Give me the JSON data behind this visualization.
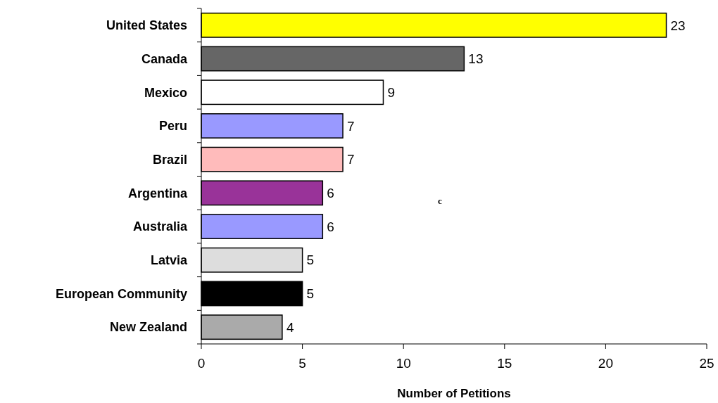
{
  "chart_data": {
    "type": "bar",
    "orientation": "horizontal",
    "xlabel": "Number of Petitions",
    "categories": [
      "United States",
      "Canada",
      "Mexico",
      "Peru",
      "Brazil",
      "Argentina",
      "Australia",
      "Latvia",
      "European Community",
      "New Zealand"
    ],
    "values": [
      23,
      13,
      9,
      7,
      7,
      6,
      6,
      5,
      5,
      4
    ],
    "colors": [
      "#ffff00",
      "#666666",
      "#ffffff",
      "#9999ff",
      "#ffbbbb",
      "#993399",
      "#9999ff",
      "#dddddd",
      "#000000",
      "#aaaaaa"
    ],
    "xlim": [
      0,
      25
    ],
    "xticks": [
      0,
      5,
      10,
      15,
      20,
      25
    ],
    "data_labels": true,
    "grid": false,
    "annotations": [
      "c"
    ]
  }
}
